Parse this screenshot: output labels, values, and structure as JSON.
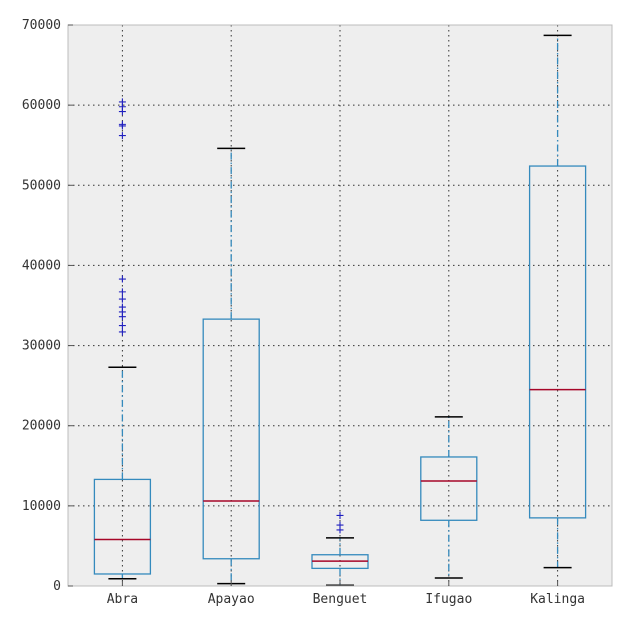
{
  "chart_data": {
    "type": "box",
    "title": "",
    "xlabel": "",
    "ylabel": "",
    "ylim": [
      0,
      70000
    ],
    "yticks": [
      0,
      10000,
      20000,
      30000,
      40000,
      50000,
      60000,
      70000
    ],
    "ytick_labels": [
      "0",
      "10000",
      "20000",
      "30000",
      "40000",
      "50000",
      "60000",
      "70000"
    ],
    "grid": true,
    "categories": [
      "Abra",
      "Apayao",
      "Benguet",
      "Ifugao",
      "Kalinga"
    ],
    "boxes": [
      {
        "name": "Abra",
        "whisker_low": 900,
        "q1": 1500,
        "median": 5800,
        "q3": 13300,
        "whisker_high": 27300,
        "fliers": [
          31700,
          32500,
          33600,
          34200,
          34800,
          35800,
          36700,
          38300,
          56200,
          57400,
          57600,
          59200,
          59800,
          60400
        ]
      },
      {
        "name": "Apayao",
        "whisker_low": 300,
        "q1": 3400,
        "median": 10600,
        "q3": 33300,
        "whisker_high": 54600,
        "fliers": []
      },
      {
        "name": "Benguet",
        "whisker_low": 100,
        "q1": 2200,
        "median": 3100,
        "q3": 3900,
        "whisker_high": 6000,
        "fliers": [
          7000,
          7600,
          8800
        ]
      },
      {
        "name": "Ifugao",
        "whisker_low": 1000,
        "q1": 8200,
        "median": 13100,
        "q3": 16100,
        "whisker_high": 21100,
        "fliers": []
      },
      {
        "name": "Kalinga",
        "whisker_low": 2300,
        "q1": 8500,
        "median": 24500,
        "q3": 52400,
        "whisker_high": 68700,
        "fliers": []
      }
    ]
  },
  "colors": {
    "background": "#eeeeee",
    "frame": "#bcbcbc",
    "box": "#348abd",
    "median": "#a60628",
    "cap": "#000000",
    "flier": "#1f1fbf"
  }
}
